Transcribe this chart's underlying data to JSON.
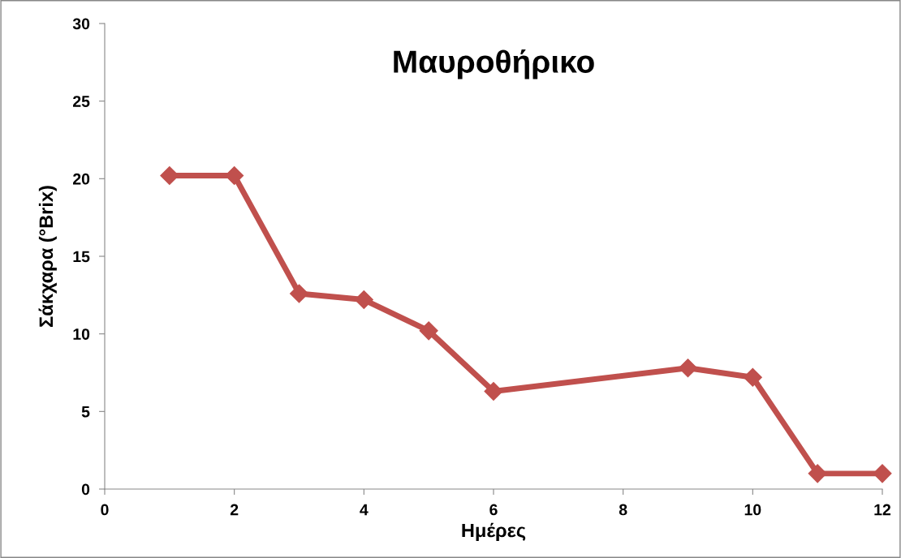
{
  "chart_data": {
    "type": "line",
    "title": "Μαυροθήρικο",
    "xlabel": "Ημέρες",
    "ylabel": "Σάκχαρα (°Brix)",
    "series": [
      {
        "color": "#c0504d",
        "x": [
          1,
          2,
          3,
          4,
          5,
          6,
          9,
          10,
          11,
          12
        ],
        "values": [
          20.2,
          20.2,
          12.6,
          12.2,
          10.2,
          6.3,
          7.8,
          7.2,
          1.0,
          1.0
        ]
      }
    ],
    "xlim": [
      0,
      12
    ],
    "xticks": [
      0,
      2,
      4,
      6,
      8,
      10,
      12
    ],
    "ylim": [
      0,
      30
    ],
    "yticks": [
      0,
      5,
      10,
      15,
      20,
      25,
      30
    ],
    "grid": false,
    "legend": false,
    "marker": "diamond",
    "line_style": "solid"
  }
}
